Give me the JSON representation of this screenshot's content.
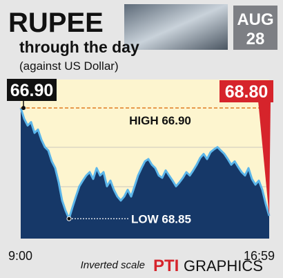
{
  "chart_data": {
    "type": "area",
    "title": "RUPEE",
    "subtitle": "through the day",
    "note": "(against US Dollar)",
    "badge": {
      "month": "AUG",
      "day": "28"
    },
    "annotations": {
      "start": "66.90",
      "end": "68.80",
      "high": "HIGH 66.90",
      "low": "LOW 68.85"
    },
    "footnote": "Inverted scale",
    "credit": {
      "agency": "PTI",
      "label": "GRAPHICS"
    },
    "categories": [
      "9:00",
      null,
      null,
      null,
      null,
      null,
      null,
      null,
      null,
      null,
      null,
      null,
      null,
      null,
      null,
      null,
      null,
      null,
      null,
      null,
      null,
      null,
      null,
      null,
      null,
      null,
      null,
      null,
      null,
      null,
      null,
      null,
      null,
      null,
      null,
      null,
      null,
      null,
      null,
      null,
      null,
      null,
      null,
      null,
      null,
      null,
      null,
      null,
      null,
      null,
      null,
      null,
      null,
      null,
      null,
      null,
      null,
      null,
      null,
      null,
      null,
      null,
      null,
      null,
      null,
      null,
      null,
      null,
      null,
      null,
      null,
      null,
      "16:59"
    ],
    "values": [
      66.9,
      67.09,
      67.21,
      67.15,
      67.34,
      67.28,
      67.46,
      67.59,
      67.65,
      67.84,
      67.96,
      68.21,
      68.53,
      68.71,
      68.85,
      68.65,
      68.46,
      68.28,
      68.18,
      68.09,
      68.03,
      68.15,
      67.96,
      68.09,
      68.03,
      68.28,
      68.18,
      68.34,
      68.46,
      68.53,
      68.46,
      68.34,
      68.46,
      68.28,
      68.09,
      67.96,
      67.84,
      67.8,
      67.9,
      67.96,
      68.09,
      68.13,
      68.0,
      68.09,
      68.18,
      68.28,
      68.21,
      68.13,
      68.03,
      68.09,
      68.0,
      67.9,
      67.78,
      67.71,
      67.8,
      67.68,
      67.63,
      67.59,
      67.65,
      67.71,
      67.8,
      67.9,
      67.84,
      67.94,
      68.03,
      68.09,
      67.96,
      68.15,
      68.25,
      68.18,
      68.34,
      68.59,
      68.8
    ],
    "ylim": [
      66.4,
      69.2
    ],
    "inverted": true,
    "color": "#163868",
    "line_color": "#5cb6ea"
  }
}
